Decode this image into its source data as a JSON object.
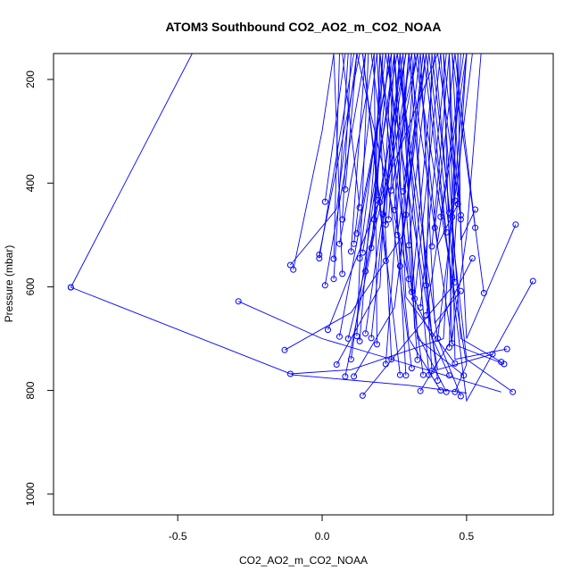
{
  "chart_data": {
    "type": "line",
    "title": "ATOM3 Southbound CO2_AO2_m_CO2_NOAA",
    "xlabel": "CO2_AO2_m_CO2_NOAA",
    "ylabel": "Pressure (mbar)",
    "xlim": [
      -0.93,
      0.8
    ],
    "ylim": [
      1040,
      150
    ],
    "y_reversed": true,
    "x_ticks": [
      -0.5,
      0.0,
      0.5
    ],
    "x_tick_labels": [
      "-0.5",
      "0.0",
      "0.5"
    ],
    "y_ticks": [
      200,
      400,
      600,
      800,
      1000
    ],
    "y_tick_labels": [
      "200",
      "400",
      "600",
      "800",
      "1000"
    ],
    "grid": false,
    "series_color": "#0000ff",
    "profiles": [
      {
        "points": [
          [
            -0.87,
            601
          ],
          [
            -0.45,
            150
          ]
        ]
      },
      {
        "points": [
          [
            -0.87,
            601
          ],
          [
            -0.1,
            770
          ],
          [
            0.3,
            790
          ],
          [
            0.5,
            805
          ]
        ]
      },
      {
        "points": [
          [
            -0.29,
            628
          ],
          [
            0.0,
            700
          ],
          [
            0.3,
            750
          ],
          [
            0.62,
            803
          ]
        ]
      },
      {
        "points": [
          [
            -0.13,
            722
          ],
          [
            0.1,
            650
          ],
          [
            0.28,
            500
          ],
          [
            0.35,
            150
          ]
        ]
      },
      {
        "points": [
          [
            -0.11,
            768
          ],
          [
            0.1,
            760
          ],
          [
            0.42,
            700
          ],
          [
            0.48,
            150
          ]
        ]
      },
      {
        "points": [
          [
            -0.11,
            558
          ],
          [
            0.05,
            450
          ],
          [
            0.12,
            150
          ]
        ]
      },
      {
        "points": [
          [
            -0.1,
            567
          ],
          [
            0.0,
            300
          ],
          [
            0.04,
            150
          ]
        ]
      },
      {
        "points": [
          [
            0.05,
            750
          ],
          [
            0.2,
            600
          ],
          [
            0.24,
            150
          ]
        ]
      },
      {
        "points": [
          [
            0.14,
            810
          ],
          [
            0.3,
            700
          ],
          [
            0.45,
            600
          ],
          [
            0.5,
            150
          ]
        ]
      },
      {
        "points": [
          [
            0.11,
            773
          ],
          [
            0.25,
            640
          ],
          [
            0.36,
            150
          ]
        ]
      },
      {
        "points": [
          [
            0.08,
            773
          ],
          [
            0.18,
            500
          ],
          [
            0.2,
            150
          ]
        ]
      },
      {
        "points": [
          [
            0.34,
            801
          ],
          [
            0.45,
            700
          ],
          [
            0.5,
            500
          ],
          [
            0.55,
            150
          ]
        ]
      },
      {
        "points": [
          [
            0.43,
            803
          ],
          [
            0.32,
            680
          ],
          [
            0.28,
            150
          ]
        ]
      },
      {
        "points": [
          [
            0.46,
            803
          ],
          [
            0.5,
            750
          ],
          [
            0.32,
            150
          ]
        ]
      },
      {
        "points": [
          [
            0.48,
            811
          ],
          [
            0.4,
            700
          ],
          [
            0.26,
            150
          ]
        ]
      },
      {
        "points": [
          [
            0.41,
            800
          ],
          [
            0.3,
            700
          ],
          [
            0.2,
            150
          ]
        ]
      },
      {
        "points": [
          [
            0.66,
            803
          ],
          [
            0.5,
            740
          ],
          [
            0.38,
            150
          ]
        ]
      },
      {
        "points": [
          [
            0.64,
            720
          ],
          [
            0.46,
            740
          ],
          [
            0.44,
            150
          ]
        ]
      },
      {
        "points": [
          [
            0.62,
            745
          ],
          [
            0.48,
            700
          ],
          [
            0.41,
            150
          ]
        ]
      },
      {
        "points": [
          [
            0.63,
            749
          ],
          [
            0.45,
            710
          ],
          [
            0.3,
            150
          ]
        ]
      },
      {
        "points": [
          [
            0.59,
            730
          ],
          [
            0.4,
            760
          ],
          [
            0.22,
            150
          ]
        ]
      },
      {
        "points": [
          [
            0.49,
            771
          ],
          [
            0.33,
            700
          ],
          [
            0.27,
            150
          ]
        ]
      },
      {
        "points": [
          [
            0.73,
            589
          ],
          [
            0.5,
            820
          ],
          [
            0.35,
            150
          ]
        ]
      },
      {
        "points": [
          [
            0.67,
            480
          ],
          [
            0.5,
            700
          ],
          [
            0.45,
            150
          ]
        ]
      },
      {
        "points": [
          [
            0.56,
            612
          ],
          [
            0.45,
            150
          ]
        ]
      },
      {
        "points": [
          [
            0.53,
            451
          ],
          [
            0.48,
            510
          ],
          [
            0.47,
            150
          ]
        ]
      },
      {
        "points": [
          [
            0.52,
            545
          ],
          [
            0.38,
            700
          ],
          [
            0.3,
            150
          ]
        ]
      },
      {
        "points": [
          [
            0.53,
            486
          ],
          [
            0.46,
            150
          ]
        ]
      },
      {
        "points": [
          [
            0.48,
            462
          ],
          [
            0.42,
            150
          ]
        ]
      },
      {
        "points": [
          [
            0.48,
            470
          ],
          [
            0.4,
            150
          ]
        ]
      },
      {
        "points": [
          [
            0.47,
            440
          ],
          [
            0.4,
            520
          ],
          [
            0.33,
            150
          ]
        ]
      },
      {
        "points": [
          [
            0.46,
            434
          ],
          [
            0.44,
            150
          ]
        ]
      },
      {
        "points": [
          [
            0.45,
            465
          ],
          [
            0.5,
            150
          ]
        ]
      },
      {
        "points": [
          [
            0.44,
            457
          ],
          [
            0.39,
            150
          ]
        ]
      },
      {
        "points": [
          [
            0.43,
            495
          ],
          [
            0.36,
            150
          ]
        ]
      },
      {
        "points": [
          [
            0.46,
            591
          ],
          [
            0.37,
            150
          ]
        ]
      },
      {
        "points": [
          [
            0.48,
            608
          ],
          [
            0.39,
            670
          ],
          [
            0.34,
            150
          ]
        ]
      },
      {
        "points": [
          [
            0.45,
            709
          ],
          [
            0.42,
            150
          ]
        ]
      },
      {
        "points": [
          [
            0.44,
            717
          ],
          [
            0.47,
            150
          ]
        ]
      },
      {
        "points": [
          [
            0.46,
            748
          ],
          [
            0.29,
            620
          ],
          [
            0.25,
            150
          ]
        ]
      },
      {
        "points": [
          [
            0.44,
            771
          ],
          [
            0.3,
            600
          ],
          [
            0.23,
            150
          ]
        ]
      },
      {
        "points": [
          [
            0.4,
            781
          ],
          [
            0.26,
            150
          ]
        ]
      },
      {
        "points": [
          [
            0.38,
            762
          ],
          [
            0.31,
            150
          ]
        ]
      },
      {
        "points": [
          [
            0.37,
            770
          ],
          [
            0.27,
            150
          ]
        ]
      },
      {
        "points": [
          [
            0.35,
            770
          ],
          [
            0.2,
            150
          ]
        ]
      },
      {
        "points": [
          [
            0.33,
            741
          ],
          [
            0.25,
            150
          ]
        ]
      },
      {
        "points": [
          [
            0.31,
            757
          ],
          [
            0.17,
            150
          ]
        ]
      },
      {
        "points": [
          [
            0.29,
            771
          ],
          [
            0.23,
            150
          ]
        ]
      },
      {
        "points": [
          [
            0.27,
            770
          ],
          [
            0.14,
            150
          ]
        ]
      },
      {
        "points": [
          [
            0.24,
            740
          ],
          [
            0.19,
            150
          ]
        ]
      },
      {
        "points": [
          [
            0.22,
            749
          ],
          [
            0.3,
            150
          ]
        ]
      },
      {
        "points": [
          [
            0.19,
            711
          ],
          [
            0.18,
            150
          ]
        ]
      },
      {
        "points": [
          [
            0.17,
            699
          ],
          [
            0.27,
            150
          ]
        ]
      },
      {
        "points": [
          [
            0.15,
            690
          ],
          [
            0.29,
            150
          ]
        ]
      },
      {
        "points": [
          [
            0.13,
            705
          ],
          [
            0.21,
            150
          ]
        ]
      },
      {
        "points": [
          [
            0.12,
            695
          ],
          [
            0.16,
            150
          ]
        ]
      },
      {
        "points": [
          [
            0.1,
            740
          ],
          [
            0.25,
            150
          ]
        ]
      },
      {
        "points": [
          [
            0.09,
            700
          ],
          [
            0.33,
            150
          ]
        ]
      },
      {
        "points": [
          [
            0.06,
            696
          ],
          [
            0.24,
            150
          ]
        ]
      },
      {
        "points": [
          [
            0.02,
            683
          ],
          [
            0.4,
            150
          ]
        ]
      },
      {
        "points": [
          [
            0.01,
            597
          ],
          [
            0.15,
            150
          ]
        ]
      },
      {
        "points": [
          [
            -0.01,
            538
          ],
          [
            0.13,
            150
          ]
        ]
      },
      {
        "points": [
          [
            -0.01,
            545
          ],
          [
            0.11,
            150
          ]
        ]
      },
      {
        "points": [
          [
            0.01,
            436
          ],
          [
            0.08,
            150
          ]
        ]
      },
      {
        "points": [
          [
            0.04,
            546
          ],
          [
            0.06,
            150
          ]
        ]
      },
      {
        "points": [
          [
            0.04,
            585
          ],
          [
            0.09,
            150
          ]
        ]
      },
      {
        "points": [
          [
            0.06,
            517
          ],
          [
            0.18,
            150
          ]
        ]
      },
      {
        "points": [
          [
            0.07,
            470
          ],
          [
            0.1,
            150
          ]
        ]
      },
      {
        "points": [
          [
            0.08,
            412
          ],
          [
            0.12,
            150
          ]
        ]
      },
      {
        "points": [
          [
            0.1,
            532
          ],
          [
            0.15,
            150
          ]
        ]
      },
      {
        "points": [
          [
            0.11,
            517
          ],
          [
            0.19,
            150
          ]
        ]
      },
      {
        "points": [
          [
            0.12,
            497
          ],
          [
            0.24,
            150
          ]
        ]
      },
      {
        "points": [
          [
            0.13,
            545
          ],
          [
            0.22,
            150
          ]
        ]
      },
      {
        "points": [
          [
            0.14,
            534
          ],
          [
            0.26,
            150
          ]
        ]
      },
      {
        "points": [
          [
            0.15,
            570
          ],
          [
            0.29,
            150
          ]
        ]
      },
      {
        "points": [
          [
            0.17,
            525
          ],
          [
            0.23,
            150
          ]
        ]
      },
      {
        "points": [
          [
            0.18,
            470
          ],
          [
            0.2,
            150
          ]
        ]
      },
      {
        "points": [
          [
            0.19,
            433
          ],
          [
            0.21,
            150
          ]
        ]
      },
      {
        "points": [
          [
            0.2,
            437
          ],
          [
            0.28,
            150
          ]
        ]
      },
      {
        "points": [
          [
            0.21,
            460
          ],
          [
            0.31,
            150
          ]
        ]
      },
      {
        "points": [
          [
            0.22,
            480
          ],
          [
            0.25,
            150
          ]
        ]
      },
      {
        "points": [
          [
            0.23,
            470
          ],
          [
            0.27,
            150
          ]
        ]
      },
      {
        "points": [
          [
            0.24,
            414
          ],
          [
            0.33,
            150
          ]
        ]
      },
      {
        "points": [
          [
            0.25,
            452
          ],
          [
            0.3,
            150
          ]
        ]
      },
      {
        "points": [
          [
            0.26,
            500
          ],
          [
            0.36,
            150
          ]
        ]
      },
      {
        "points": [
          [
            0.27,
            560
          ],
          [
            0.32,
            150
          ]
        ]
      },
      {
        "points": [
          [
            0.28,
            416
          ],
          [
            0.34,
            150
          ]
        ]
      },
      {
        "points": [
          [
            0.29,
            461
          ],
          [
            0.35,
            150
          ]
        ]
      },
      {
        "points": [
          [
            0.3,
            520
          ],
          [
            0.37,
            150
          ]
        ]
      },
      {
        "points": [
          [
            0.31,
            610
          ],
          [
            0.39,
            150
          ]
        ]
      },
      {
        "points": [
          [
            0.32,
            623
          ],
          [
            0.41,
            150
          ]
        ]
      },
      {
        "points": [
          [
            0.34,
            640
          ],
          [
            0.43,
            150
          ]
        ]
      },
      {
        "points": [
          [
            0.36,
            597
          ],
          [
            0.38,
            150
          ]
        ]
      },
      {
        "points": [
          [
            0.38,
            522
          ],
          [
            0.44,
            150
          ]
        ]
      },
      {
        "points": [
          [
            0.39,
            486
          ],
          [
            0.46,
            150
          ]
        ]
      },
      {
        "points": [
          [
            0.41,
            465
          ],
          [
            0.49,
            150
          ]
        ]
      },
      {
        "points": [
          [
            0.07,
            575
          ],
          [
            0.04,
            150
          ]
        ]
      },
      {
        "points": [
          [
            0.13,
            447
          ],
          [
            0.07,
            150
          ]
        ]
      },
      {
        "points": [
          [
            0.22,
            550
          ],
          [
            0.14,
            150
          ]
        ]
      },
      {
        "points": [
          [
            0.3,
            585
          ],
          [
            0.12,
            150
          ]
        ]
      },
      {
        "points": [
          [
            0.36,
            655
          ],
          [
            0.5,
            150
          ]
        ]
      },
      {
        "points": [
          [
            0.4,
            700
          ],
          [
            0.52,
            150
          ]
        ]
      }
    ]
  }
}
